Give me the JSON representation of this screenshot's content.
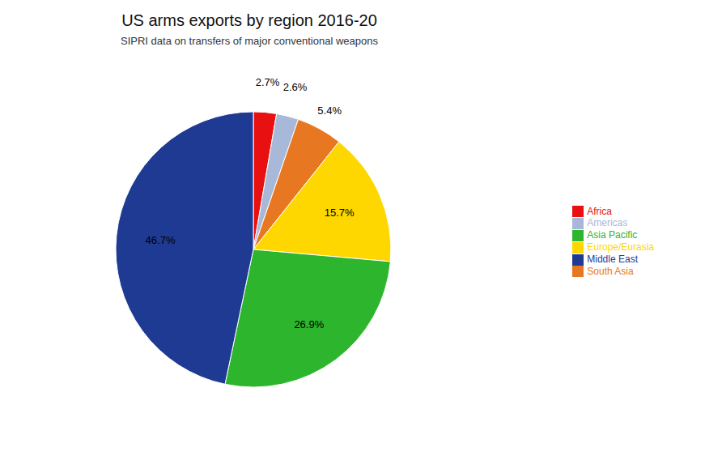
{
  "chart_data": {
    "type": "pie",
    "title": "US arms exports by region 2016-20",
    "subtitle": "SIPRI data on transfers of major conventional weapons",
    "categories": [
      "Africa",
      "Americas",
      "South Asia",
      "Europe/Eurasia",
      "Asia Pacific",
      "Middle East"
    ],
    "values": [
      2.7,
      2.6,
      5.4,
      15.7,
      26.9,
      46.7
    ],
    "value_labels": [
      "2.7%",
      "2.6%",
      "5.4%",
      "15.7%",
      "26.9%",
      "46.7%"
    ],
    "colors": [
      "#e81010",
      "#a8b8d8",
      "#e87722",
      "#ffd700",
      "#2db52d",
      "#1f3a93"
    ],
    "data_labels": true,
    "legend": "right"
  }
}
